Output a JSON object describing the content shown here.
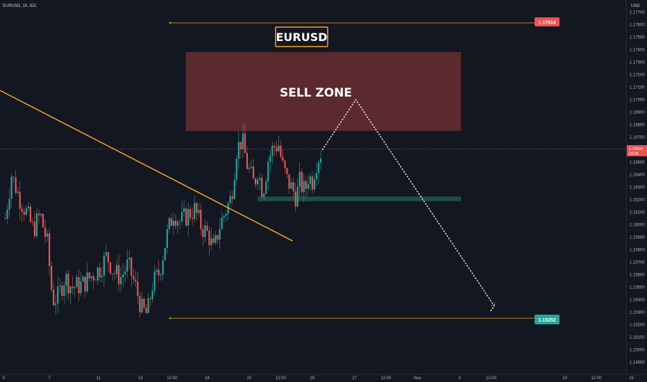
{
  "header": {
    "symbol_info": "EURUSD, 1h, IDC",
    "currency": "USD"
  },
  "colors": {
    "background": "#131722",
    "bull": "#26a69a",
    "bear": "#ef5350",
    "trendline": "#f5a623",
    "sell_zone": "#5b2a2e",
    "support_zone": "#1e4d45",
    "upper_badge": "#ef5350",
    "lower_badge": "#26a69a",
    "path": "#ffffff"
  },
  "title_label": "EURUSD",
  "annotations": {
    "sell_zone_label": "SELL ZONE",
    "upper_level": "1.17614",
    "lower_level": "1.15252",
    "current_price": "1.16604",
    "countdown": "03:05"
  },
  "chart_data": {
    "type": "candlestick",
    "symbol": "EURUSD",
    "timeframe": "1h",
    "ylim": [
      1.1482,
      1.1788
    ],
    "y_ticks": [
      "1.17700",
      "1.17600",
      "1.17500",
      "1.17400",
      "1.17300",
      "1.17200",
      "1.17100",
      "1.17000",
      "1.16900",
      "1.16800",
      "1.16700",
      "1.16600",
      "1.16500",
      "1.16400",
      "1.16300",
      "1.16200",
      "1.16100",
      "1.16000",
      "1.15900",
      "1.15800",
      "1.15700",
      "1.15600",
      "1.15500",
      "1.15400",
      "1.15300",
      "1.15200",
      "1.15100",
      "1.15000",
      "1.14900"
    ],
    "x_ticks": [
      "5",
      "7",
      "11",
      "13",
      "12:00",
      "18",
      "20",
      "12:00",
      "25",
      "27",
      "12:00",
      "Nov",
      "3",
      "12:00",
      "10",
      "12:00",
      "15"
    ],
    "x_tick_units": [
      0,
      13,
      27,
      39,
      48,
      58,
      70,
      79,
      88,
      100,
      109,
      118,
      130,
      139,
      160,
      169,
      179
    ],
    "x_units_total": 186,
    "price_path": [
      [
        0,
        1.1605
      ],
      [
        1.8,
        1.164
      ],
      [
        4,
        1.1622
      ],
      [
        6,
        1.161
      ],
      [
        8,
        1.1596
      ],
      [
        10,
        1.1608
      ],
      [
        12,
        1.1585
      ],
      [
        13.5,
        1.154
      ],
      [
        15,
        1.1542
      ],
      [
        17,
        1.1558
      ],
      [
        19,
        1.155
      ],
      [
        22,
        1.1552
      ],
      [
        25,
        1.156
      ],
      [
        27,
        1.1565
      ],
      [
        29,
        1.1575
      ],
      [
        31,
        1.1562
      ],
      [
        33,
        1.1558
      ],
      [
        35,
        1.1568
      ],
      [
        37,
        1.1552
      ],
      [
        39,
        1.1532
      ],
      [
        40.5,
        1.1528
      ],
      [
        42,
        1.1552
      ],
      [
        44,
        1.1562
      ],
      [
        46,
        1.159
      ],
      [
        48,
        1.161
      ],
      [
        50,
        1.1602
      ],
      [
        52,
        1.1608
      ],
      [
        54,
        1.1612
      ],
      [
        56,
        1.1598
      ],
      [
        58,
        1.1592
      ],
      [
        59.5,
        1.1578
      ],
      [
        61,
        1.1598
      ],
      [
        63,
        1.1612
      ],
      [
        64.5,
        1.1622
      ],
      [
        66,
        1.166
      ],
      [
        67.5,
        1.1668
      ],
      [
        69,
        1.1648
      ],
      [
        70,
        1.164
      ],
      [
        71,
        1.1632
      ],
      [
        72,
        1.1644
      ],
      [
        73.5,
        1.1626
      ],
      [
        75,
        1.1652
      ],
      [
        76.5,
        1.1662
      ],
      [
        78,
        1.1664
      ],
      [
        79,
        1.1648
      ],
      [
        80.5,
        1.1635
      ],
      [
        82,
        1.1628
      ],
      [
        83,
        1.1622
      ],
      [
        84,
        1.1634
      ],
      [
        85.5,
        1.1626
      ],
      [
        86.5,
        1.164
      ],
      [
        87.5,
        1.1634
      ],
      [
        88.5,
        1.1648
      ],
      [
        89.5,
        1.1655
      ],
      [
        90.5,
        1.166
      ]
    ],
    "trendline": {
      "from": [
        0,
        1.1707
      ],
      "to": [
        82,
        1.1587
      ]
    },
    "horizontal_levels": [
      {
        "label": "1.17614",
        "value": 1.17614,
        "from_x": 47
      },
      {
        "label": "1.15252",
        "value": 1.15252,
        "from_x": 47
      }
    ],
    "current_price": 1.16604,
    "sell_zone": {
      "x_from": 51.5,
      "x_to": 130,
      "y_from": 1.1675,
      "y_to": 1.1738
    },
    "support_zone": {
      "x_from": 72,
      "x_to": 130,
      "y_from": 1.16188,
      "y_to": 1.16226
    },
    "projected_path": [
      [
        90.5,
        1.166
      ],
      [
        100,
        1.17
      ],
      [
        139.5,
        1.1535
      ],
      [
        138.5,
        1.1531
      ]
    ]
  }
}
